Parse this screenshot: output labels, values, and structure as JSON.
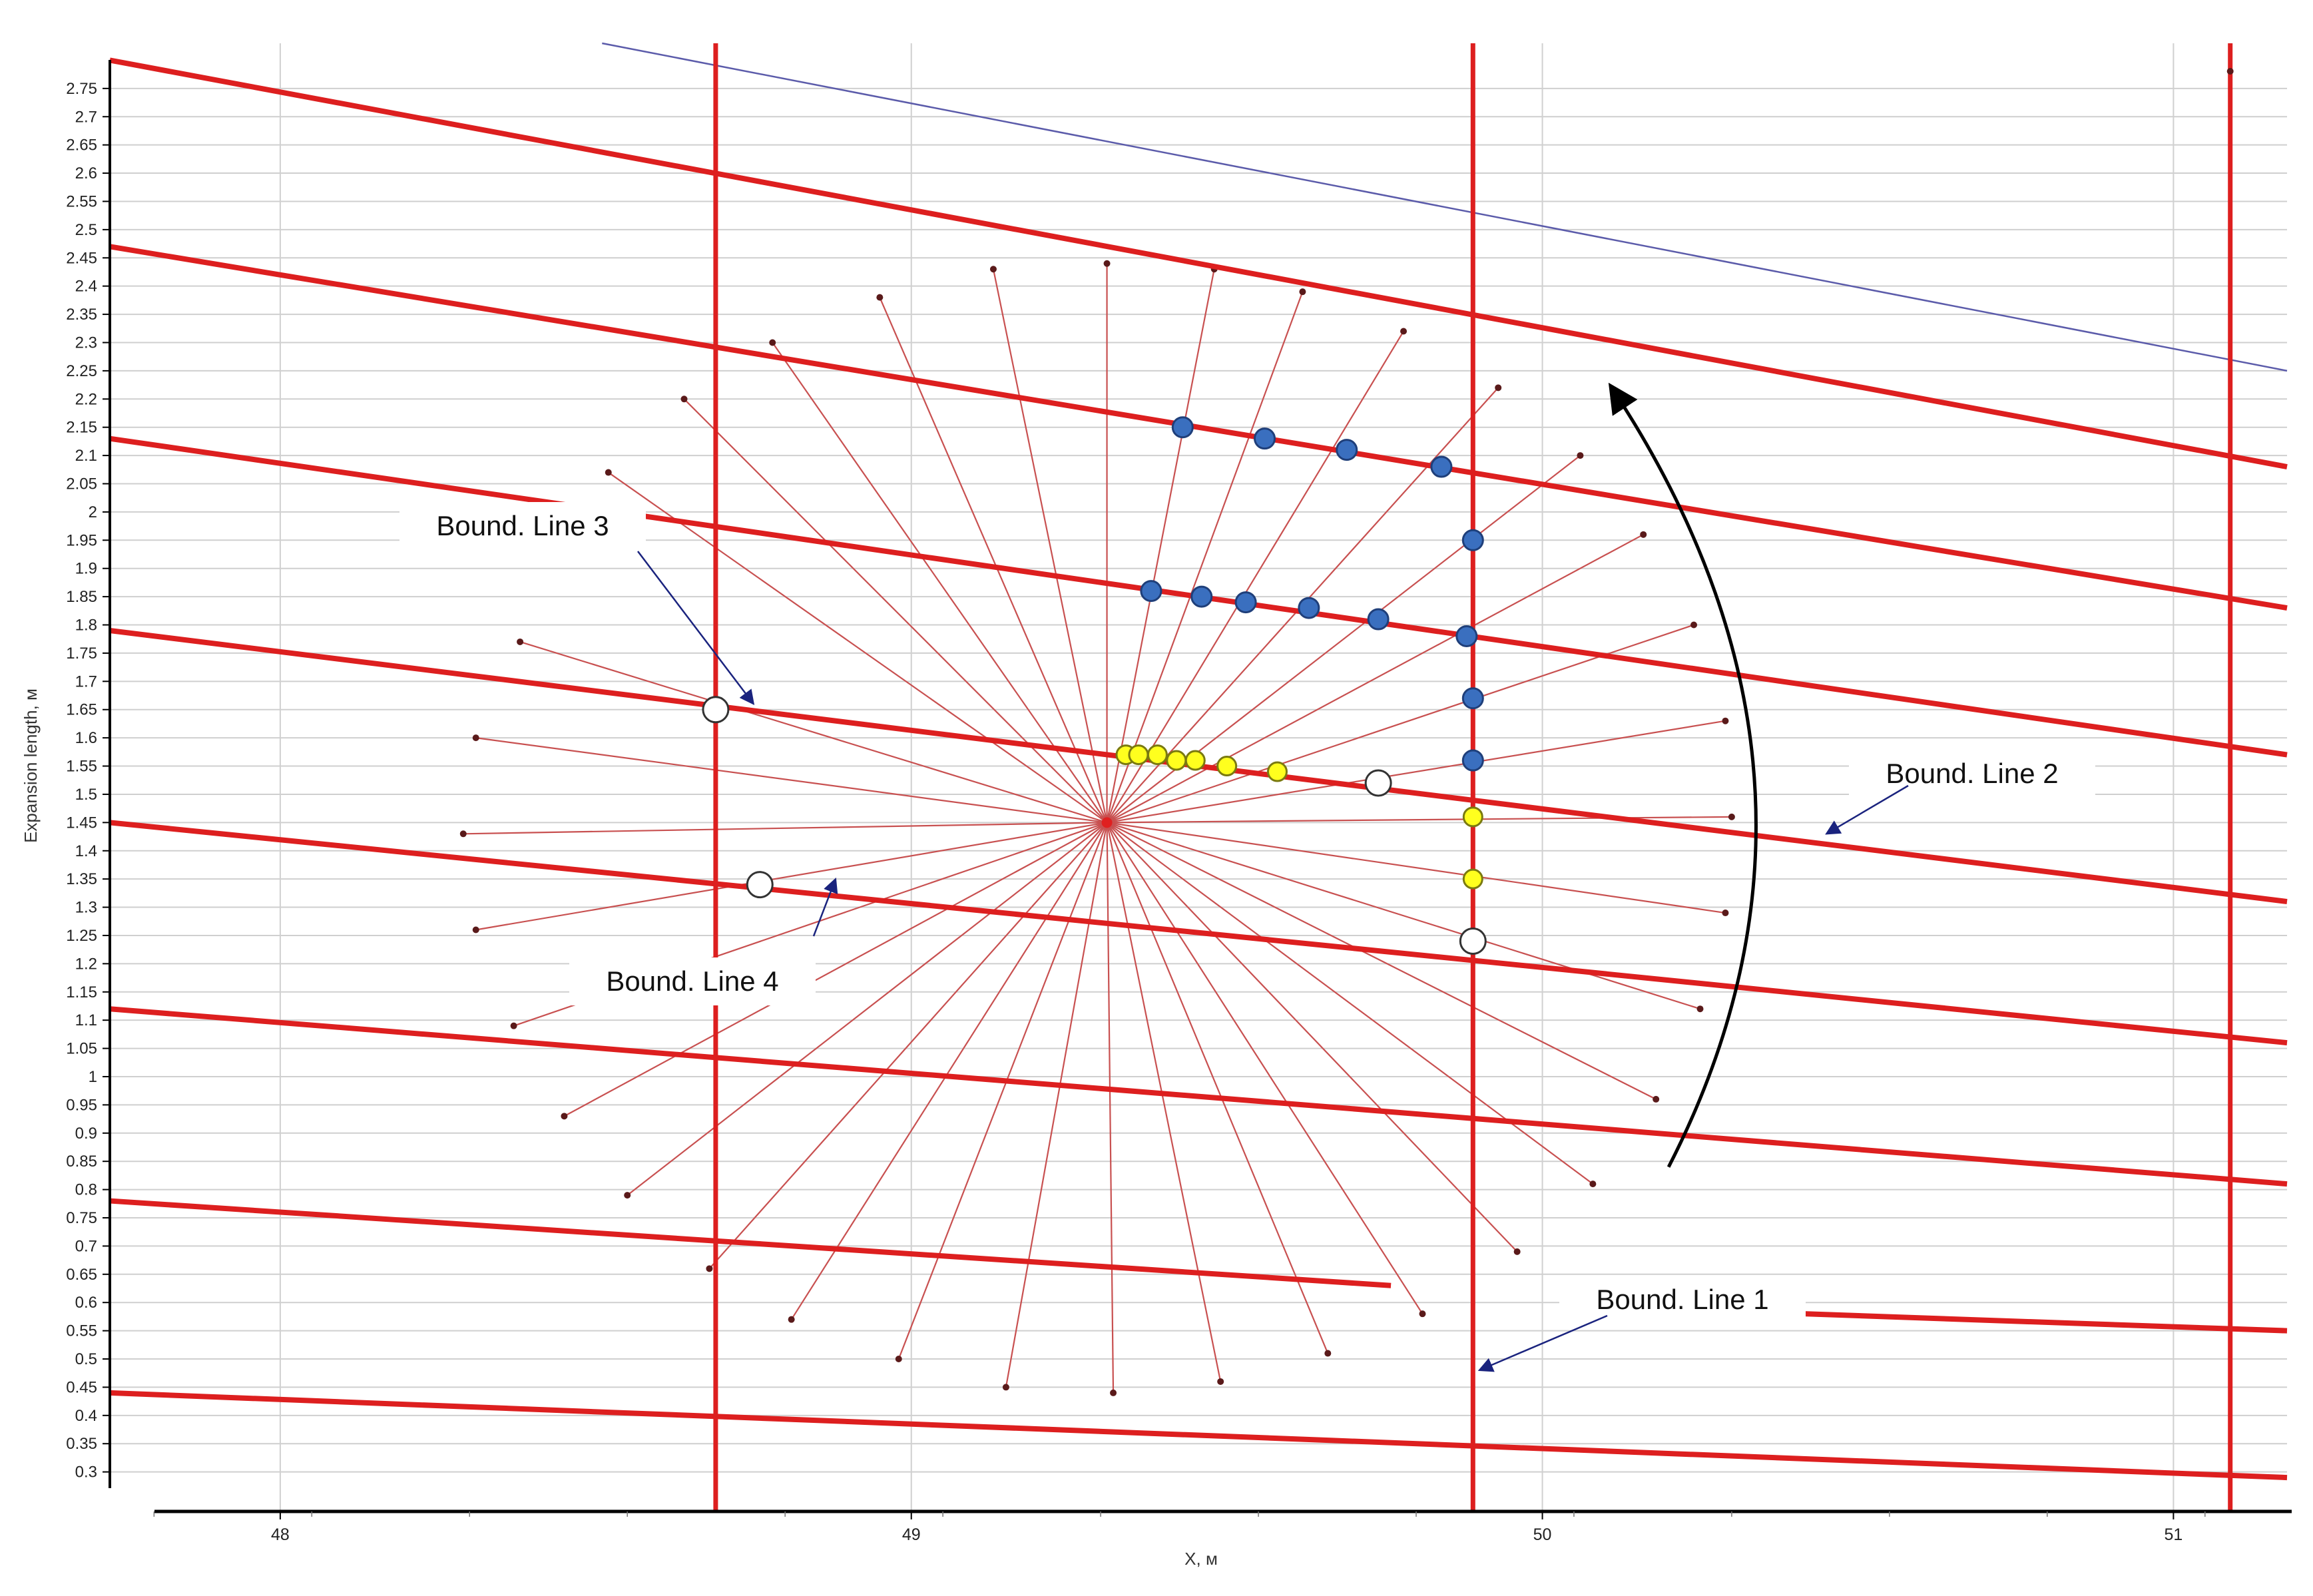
{
  "chart_data": {
    "type": "scatter",
    "xlabel": "X, м",
    "ylabel": "Expansion length, м",
    "xlim": [
      47.73,
      51.18
    ],
    "ylim": [
      0.23,
      2.83
    ],
    "x_ticks": [
      "48",
      "49",
      "50",
      "51"
    ],
    "y_ticks": [
      "0.3",
      "0.35",
      "0.4",
      "0.45",
      "0.5",
      "0.55",
      "0.6",
      "0.65",
      "0.7",
      "0.75",
      "0.8",
      "0.85",
      "0.9",
      "0.95",
      "1",
      "1.05",
      "1.1",
      "1.15",
      "1.2",
      "1.25",
      "1.3",
      "1.35",
      "1.4",
      "1.45",
      "1.5",
      "1.55",
      "1.6",
      "1.65",
      "1.7",
      "1.75",
      "1.8",
      "1.85",
      "1.9",
      "1.95",
      "2",
      "2.05",
      "2.1",
      "2.15",
      "2.2",
      "2.25",
      "2.3",
      "2.35",
      "2.4",
      "2.45",
      "2.5",
      "2.55",
      "2.6",
      "2.65",
      "2.7",
      "2.75"
    ],
    "grid": true,
    "colors": {
      "boundary": "#dd1f1f",
      "ray": "#c85050",
      "ray_end": "#5a1a1a",
      "blue_point": "#3a6fbf",
      "yellow_point": "#ffff1e",
      "white_point": "#ffffff",
      "thin_line": "#5b5baa",
      "callout_arrow": "#1a237e"
    },
    "vertical_lines_x": [
      48.69,
      49.89,
      51.09
    ],
    "slanted_lines": [
      {
        "x": [
          47.73,
          51.18
        ],
        "y": [
          2.8,
          2.08
        ]
      },
      {
        "x": [
          47.73,
          51.18
        ],
        "y": [
          2.47,
          1.83
        ]
      },
      {
        "x": [
          47.73,
          51.18
        ],
        "y": [
          2.13,
          1.57
        ]
      },
      {
        "x": [
          47.73,
          51.18
        ],
        "y": [
          1.79,
          1.31
        ]
      },
      {
        "x": [
          47.73,
          51.18
        ],
        "y": [
          1.45,
          1.06
        ]
      },
      {
        "x": [
          47.73,
          51.18
        ],
        "y": [
          1.12,
          0.81
        ]
      },
      {
        "x": [
          47.73,
          49.76
        ],
        "y": [
          0.78,
          0.63
        ]
      },
      {
        "x": [
          50.16,
          51.18
        ],
        "y": [
          0.59,
          0.55
        ]
      },
      {
        "x": [
          47.73,
          51.18
        ],
        "y": [
          0.44,
          0.29
        ]
      }
    ],
    "thin_line": {
      "x": [
        48.51,
        51.18
      ],
      "y": [
        2.83,
        2.25
      ]
    },
    "ray_center": {
      "x": 49.31,
      "y": 1.45
    },
    "ray_ends": [
      {
        "x": 49.32,
        "y": 0.44
      },
      {
        "x": 49.49,
        "y": 0.46
      },
      {
        "x": 49.66,
        "y": 0.51
      },
      {
        "x": 49.81,
        "y": 0.58
      },
      {
        "x": 49.96,
        "y": 0.69
      },
      {
        "x": 50.08,
        "y": 0.81
      },
      {
        "x": 50.18,
        "y": 0.96
      },
      {
        "x": 50.25,
        "y": 1.12
      },
      {
        "x": 50.29,
        "y": 1.29
      },
      {
        "x": 50.3,
        "y": 1.46
      },
      {
        "x": 50.29,
        "y": 1.63
      },
      {
        "x": 50.24,
        "y": 1.8
      },
      {
        "x": 50.16,
        "y": 1.96
      },
      {
        "x": 50.06,
        "y": 2.1
      },
      {
        "x": 49.93,
        "y": 2.22
      },
      {
        "x": 49.78,
        "y": 2.32
      },
      {
        "x": 49.62,
        "y": 2.39
      },
      {
        "x": 49.48,
        "y": 2.43
      },
      {
        "x": 49.31,
        "y": 2.44
      },
      {
        "x": 49.13,
        "y": 2.43
      },
      {
        "x": 48.95,
        "y": 2.38
      },
      {
        "x": 48.78,
        "y": 2.3
      },
      {
        "x": 48.64,
        "y": 2.2
      },
      {
        "x": 48.52,
        "y": 2.07
      },
      {
        "x": 48.38,
        "y": 1.77
      },
      {
        "x": 48.31,
        "y": 1.6
      },
      {
        "x": 48.29,
        "y": 1.43
      },
      {
        "x": 48.31,
        "y": 1.26
      },
      {
        "x": 48.37,
        "y": 1.09
      },
      {
        "x": 48.45,
        "y": 0.93
      },
      {
        "x": 48.55,
        "y": 0.79
      },
      {
        "x": 48.68,
        "y": 0.66
      },
      {
        "x": 48.81,
        "y": 0.57
      },
      {
        "x": 48.98,
        "y": 0.5
      },
      {
        "x": 49.15,
        "y": 0.45
      }
    ],
    "blue_points": [
      {
        "x": 49.43,
        "y": 2.15
      },
      {
        "x": 49.56,
        "y": 2.13
      },
      {
        "x": 49.69,
        "y": 2.11
      },
      {
        "x": 49.84,
        "y": 2.08
      },
      {
        "x": 49.38,
        "y": 1.86
      },
      {
        "x": 49.46,
        "y": 1.85
      },
      {
        "x": 49.53,
        "y": 1.84
      },
      {
        "x": 49.63,
        "y": 1.83
      },
      {
        "x": 49.74,
        "y": 1.81
      },
      {
        "x": 49.88,
        "y": 1.78
      },
      {
        "x": 49.89,
        "y": 1.95
      },
      {
        "x": 49.89,
        "y": 1.67
      },
      {
        "x": 49.89,
        "y": 1.56
      }
    ],
    "yellow_points": [
      {
        "x": 49.34,
        "y": 1.57
      },
      {
        "x": 49.36,
        "y": 1.57
      },
      {
        "x": 49.39,
        "y": 1.57
      },
      {
        "x": 49.42,
        "y": 1.56
      },
      {
        "x": 49.45,
        "y": 1.56
      },
      {
        "x": 49.5,
        "y": 1.55
      },
      {
        "x": 49.58,
        "y": 1.54
      },
      {
        "x": 49.89,
        "y": 1.46
      },
      {
        "x": 49.89,
        "y": 1.35
      }
    ],
    "white_points": [
      {
        "x": 48.69,
        "y": 1.65
      },
      {
        "x": 49.74,
        "y": 1.52
      },
      {
        "x": 48.76,
        "y": 1.34
      },
      {
        "x": 49.89,
        "y": 1.24
      }
    ],
    "annotations": [
      {
        "text": "Bound. Line 3",
        "target_x": 48.75,
        "target_y": 1.66
      },
      {
        "text": "Bound. Line 2",
        "target_x": 50.45,
        "target_y": 1.43
      },
      {
        "text": "Bound. Line 4",
        "target_x": 48.88,
        "target_y": 1.35
      },
      {
        "text": "Bound. Line 1",
        "target_x": 49.9,
        "target_y": 0.48
      }
    ],
    "curved_arrow": {
      "from_x": 50.2,
      "from_y": 0.84,
      "to_x": 50.11,
      "to_y": 2.22
    }
  }
}
